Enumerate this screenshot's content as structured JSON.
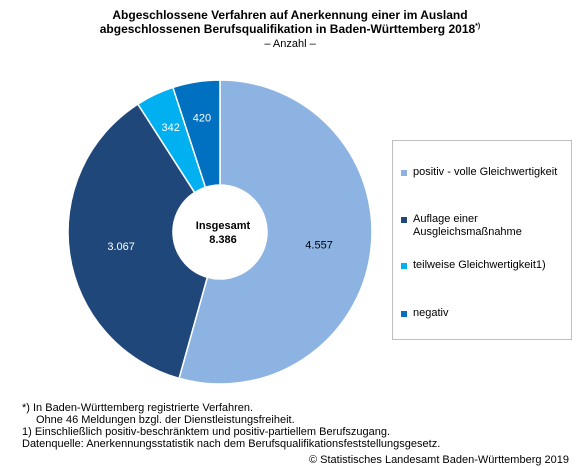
{
  "chart_data": {
    "type": "donut",
    "title": [
      "Abgeschlossene Verfahren auf Anerkennung einer im Ausland",
      "abgeschlossenen Berufsqualifikation  in Baden-Württemberg 2018"
    ],
    "title_note": "*)",
    "subtitle": "– Anzahl –",
    "categories": [
      "positiv - volle Gleichwertigkeit",
      "Auflage einer Ausgleichsmaßnahme",
      "teilweise Gleichwertigkeit1)",
      "negativ"
    ],
    "values": [
      4557,
      3067,
      342,
      420
    ],
    "value_labels": [
      "4.557",
      "3.067",
      "342",
      "420"
    ],
    "colors": [
      "#8db3e2",
      "#1f477a",
      "#00b0f0",
      "#0070c0"
    ],
    "value_label_colors": [
      "#000000",
      "#ffffff",
      "#ffffff",
      "#ffffff"
    ],
    "center_label": "Insgesamt",
    "center_value": "8.386",
    "footnotes": [
      "*) In Baden-Württemberg registrierte Verfahren.",
      "Ohne 46 Meldungen bzgl. der   Dienstleistungsfreiheit.",
      "1) Einschließlich positiv-beschränktem und positiv-partiellem Berufszugang.",
      "Datenquelle: Anerkennungsstatistik nach dem Berufsqualifikationsfeststellungsgesetz."
    ],
    "source": "© Statistisches Landesamt Baden-Württemberg 2019"
  }
}
